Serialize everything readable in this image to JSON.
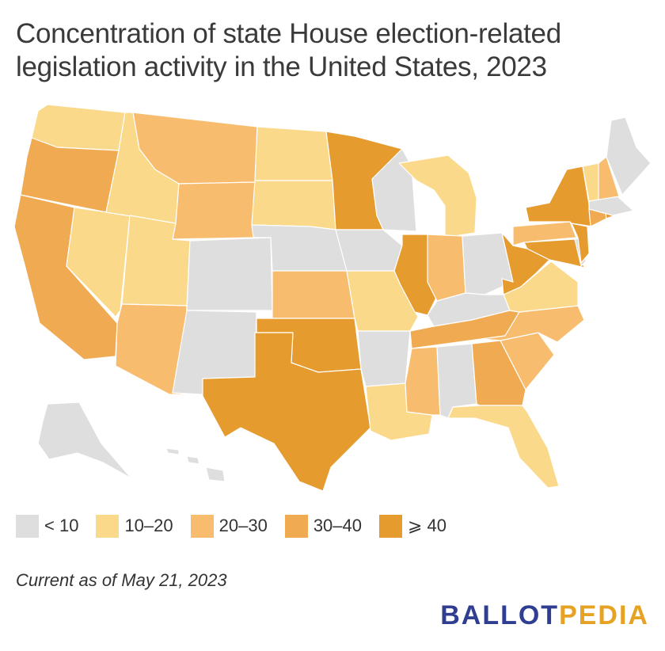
{
  "title": "Concentration of state House election-related legislation activity in the United States, 2023",
  "legend": [
    {
      "label": "< 10",
      "color": "#dedede"
    },
    {
      "label": "10–20",
      "color": "#fbd98a"
    },
    {
      "label": "20–30",
      "color": "#f8bc6e"
    },
    {
      "label": "30–40",
      "color": "#f0aa52"
    },
    {
      "label": "⩾ 40",
      "color": "#e59b2e"
    }
  ],
  "footnote": "Current as of May 21, 2023",
  "brand": {
    "part1": "BALLOT",
    "part2": "PEDIA"
  },
  "chart_data": {
    "type": "choropleth",
    "bins": [
      "< 10",
      "10–20",
      "20–30",
      "30–40",
      "⩾ 40"
    ],
    "states": {
      "WA": "10–20",
      "OR": "30–40",
      "CA": "30–40",
      "NV": "10–20",
      "ID": "10–20",
      "MT": "20–30",
      "WY": "20–30",
      "UT": "10–20",
      "AZ": "20–30",
      "CO": "< 10",
      "NM": "< 10",
      "ND": "10–20",
      "SD": "10–20",
      "NE": "< 10",
      "KS": "20–30",
      "OK": "⩾ 40",
      "TX": "⩾ 40",
      "MN": "⩾ 40",
      "IA": "< 10",
      "MO": "10–20",
      "AR": "< 10",
      "LA": "10–20",
      "WI": "< 10",
      "IL": "⩾ 40",
      "MI": "10–20",
      "IN": "20–30",
      "OH": "< 10",
      "KY": "< 10",
      "TN": "30–40",
      "MS": "20–30",
      "AL": "< 10",
      "GA": "30–40",
      "FL": "10–20",
      "SC": "20–30",
      "NC": "20–30",
      "VA": "10–20",
      "WV": "⩾ 40",
      "MD": "⩾ 40",
      "DE": "< 10",
      "PA": "20–30",
      "NJ": "⩾ 40",
      "NY": "⩾ 40",
      "CT": "30–40",
      "RI": "⩾ 40",
      "MA": "< 10",
      "VT": "10–20",
      "NH": "20–30",
      "ME": "< 10",
      "AK": "< 10",
      "HI": "< 10"
    }
  }
}
